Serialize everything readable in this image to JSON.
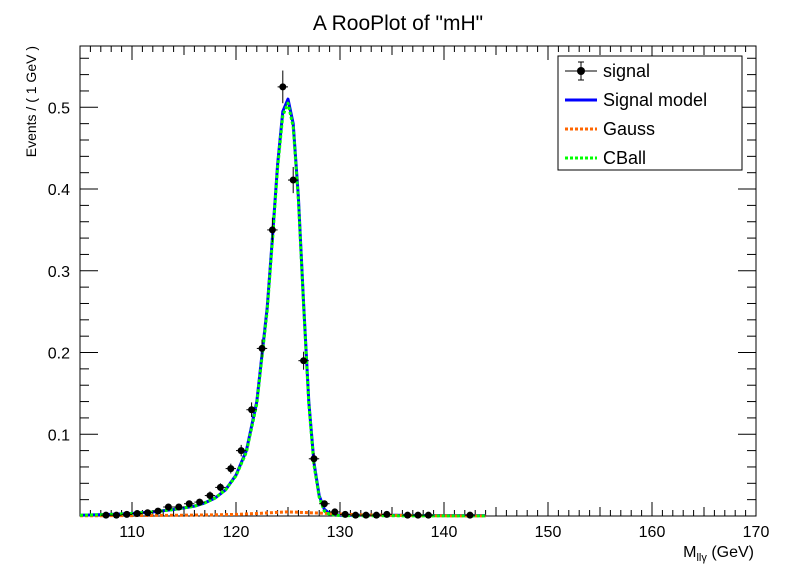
{
  "chart_data": {
    "type": "line",
    "title": "A RooPlot of \"mH\"",
    "xlabel": "M",
    "xlabel_sub": "llγ",
    "xlabel_unit": "(GeV)",
    "ylabel": "Events / ( 1 GeV )",
    "xlim": [
      105,
      170
    ],
    "ylim": [
      0,
      0.575
    ],
    "x_ticks": [
      110,
      120,
      130,
      140,
      150,
      160,
      170
    ],
    "y_ticks": [
      0.1,
      0.2,
      0.3,
      0.4,
      0.5
    ],
    "grid": false,
    "legend_position": "top-right",
    "legend": [
      {
        "label": "signal",
        "style": "markers",
        "color": "#000000"
      },
      {
        "label": "Signal model",
        "style": "solid",
        "color": "#0000ff"
      },
      {
        "label": "Gauss",
        "style": "dotted",
        "color": "#ff6600"
      },
      {
        "label": "CBall",
        "style": "dotted",
        "color": "#00ff00"
      }
    ],
    "series": [
      {
        "name": "signal",
        "kind": "points_with_errors",
        "color": "#000000",
        "x": [
          107.5,
          108.5,
          109.5,
          110.5,
          111.5,
          112.5,
          113.5,
          114.5,
          115.5,
          116.5,
          117.5,
          118.5,
          119.5,
          120.5,
          121.5,
          122.5,
          123.5,
          124.5,
          125.5,
          126.5,
          127.5,
          128.5,
          129.5,
          130.5,
          131.5,
          132.5,
          133.5,
          134.5,
          136.5,
          137.5,
          138.5,
          142.5
        ],
        "y": [
          0.001,
          0.001,
          0.002,
          0.003,
          0.004,
          0.006,
          0.011,
          0.011,
          0.015,
          0.017,
          0.025,
          0.035,
          0.058,
          0.08,
          0.13,
          0.205,
          0.35,
          0.525,
          0.411,
          0.19,
          0.07,
          0.015,
          0.005,
          0.002,
          0.001,
          0.001,
          0.001,
          0.002,
          0.001,
          0.001,
          0.001,
          0.001
        ],
        "yerr": [
          0.002,
          0.002,
          0.002,
          0.002,
          0.002,
          0.003,
          0.003,
          0.003,
          0.004,
          0.004,
          0.005,
          0.005,
          0.006,
          0.007,
          0.009,
          0.011,
          0.015,
          0.02,
          0.016,
          0.011,
          0.007,
          0.003,
          0.002,
          0.002,
          0.002,
          0.002,
          0.002,
          0.002,
          0.002,
          0.002,
          0.002,
          0.002
        ]
      },
      {
        "name": "Signal model",
        "kind": "curve",
        "color": "#0000ff",
        "x": [
          105,
          108,
          110,
          112,
          114,
          116,
          117,
          118,
          119,
          120,
          121,
          122,
          123,
          123.5,
          124,
          124.5,
          125,
          125.5,
          126,
          126.5,
          127,
          127.5,
          128,
          128.5,
          129,
          130,
          132,
          135,
          140,
          144
        ],
        "y": [
          0.001,
          0.002,
          0.003,
          0.005,
          0.008,
          0.012,
          0.016,
          0.022,
          0.032,
          0.05,
          0.08,
          0.14,
          0.255,
          0.34,
          0.43,
          0.495,
          0.51,
          0.48,
          0.39,
          0.26,
          0.14,
          0.065,
          0.025,
          0.008,
          0.003,
          0.001,
          0.001,
          0.001,
          0.0005,
          0.0005
        ]
      },
      {
        "name": "Gauss",
        "kind": "curve",
        "color": "#ff6600",
        "x": [
          105,
          110,
          115,
          118,
          120,
          122,
          124,
          125,
          126,
          128,
          130,
          132,
          135,
          140,
          144
        ],
        "y": [
          0.0002,
          0.0005,
          0.001,
          0.0015,
          0.002,
          0.003,
          0.0045,
          0.005,
          0.0045,
          0.0035,
          0.0025,
          0.0015,
          0.0008,
          0.0003,
          0.0001
        ]
      },
      {
        "name": "CBall",
        "kind": "curve",
        "color": "#00ff00",
        "x": [
          105,
          108,
          110,
          112,
          114,
          116,
          117,
          118,
          119,
          120,
          121,
          122,
          123,
          123.5,
          124,
          124.5,
          125,
          125.5,
          126,
          126.5,
          127,
          127.5,
          128,
          128.5,
          129,
          130,
          132,
          135,
          140,
          144
        ],
        "y": [
          0.001,
          0.002,
          0.003,
          0.005,
          0.008,
          0.012,
          0.016,
          0.022,
          0.032,
          0.049,
          0.078,
          0.137,
          0.251,
          0.336,
          0.426,
          0.49,
          0.505,
          0.476,
          0.386,
          0.257,
          0.137,
          0.062,
          0.023,
          0.006,
          0.002,
          0.0005,
          0.0003,
          0.0002,
          0.0001,
          0.0001
        ]
      }
    ]
  }
}
